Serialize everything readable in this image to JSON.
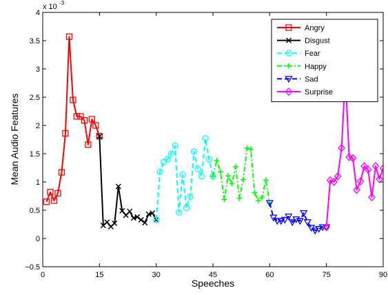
{
  "chart_data": {
    "type": "line",
    "title": "",
    "xlabel": "Speeches",
    "ylabel": "Mean Audio Features",
    "exponent_label": "x 10",
    "exponent_power": "-3",
    "xlim": [
      0,
      90
    ],
    "ylim": [
      -0.5,
      4
    ],
    "xticks": [
      0,
      15,
      30,
      45,
      60,
      75,
      90
    ],
    "yticks": [
      -0.5,
      0,
      0.5,
      1,
      1.5,
      2,
      2.5,
      3,
      3.5,
      4
    ],
    "ytick_labels": [
      "−0.5",
      "0",
      "0.5",
      "1",
      "1.5",
      "2",
      "2.5",
      "3",
      "3.5",
      "4"
    ],
    "grid": false,
    "legend_position": "top-right",
    "series": [
      {
        "name": "Angry",
        "color": "#ff0000",
        "dash": "solid",
        "marker": "square",
        "x": [
          1,
          2,
          3,
          4,
          5,
          6,
          7,
          8,
          9,
          10,
          11,
          12,
          13,
          14,
          15
        ],
        "y": [
          0.65,
          0.82,
          0.67,
          0.8,
          1.17,
          1.86,
          3.57,
          2.45,
          2.16,
          2.16,
          2.09,
          1.66,
          2.11,
          2.0,
          1.81
        ]
      },
      {
        "name": "Disgust",
        "color": "#000000",
        "dash": "solid",
        "marker": "x",
        "x": [
          15,
          16,
          17,
          18,
          19,
          20,
          21,
          22,
          23,
          24,
          25,
          26,
          27,
          28,
          29,
          30
        ],
        "y": [
          1.81,
          0.23,
          0.29,
          0.21,
          0.27,
          0.92,
          0.49,
          0.41,
          0.48,
          0.36,
          0.38,
          0.33,
          0.28,
          0.43,
          0.45,
          0.33
        ]
      },
      {
        "name": "Fear",
        "color": "#00ffff",
        "dash": "dashed",
        "marker": "circle",
        "x": [
          30,
          31,
          32,
          33,
          34,
          35,
          36,
          37,
          38,
          39,
          40,
          41,
          42,
          43,
          44,
          45
        ],
        "y": [
          0.33,
          1.18,
          1.35,
          1.4,
          1.5,
          1.64,
          0.46,
          1.13,
          0.54,
          0.74,
          1.54,
          1.23,
          1.1,
          1.77,
          1.4,
          1.1
        ]
      },
      {
        "name": "Happy",
        "color": "#00ff00",
        "dash": "dashdot",
        "marker": "plus",
        "x": [
          45,
          46,
          47,
          48,
          49,
          50,
          51,
          52,
          53,
          54,
          55,
          56,
          57,
          58,
          59,
          60
        ],
        "y": [
          1.1,
          1.38,
          1.18,
          0.69,
          1.11,
          0.97,
          1.27,
          0.71,
          1.04,
          1.6,
          1.58,
          0.81,
          0.67,
          0.73,
          1.03,
          0.63
        ]
      },
      {
        "name": "Sad",
        "color": "#0000ff",
        "dash": "dashed",
        "marker": "triangle-down",
        "x": [
          60,
          61,
          62,
          63,
          64,
          65,
          66,
          67,
          68,
          69,
          70,
          71,
          72,
          73,
          74,
          75
        ],
        "y": [
          0.63,
          0.37,
          0.31,
          0.31,
          0.33,
          0.39,
          0.29,
          0.34,
          0.31,
          0.45,
          0.29,
          0.19,
          0.14,
          0.17,
          0.2,
          0.2
        ]
      },
      {
        "name": "Surprise",
        "color": "#ff00ff",
        "dash": "solid",
        "marker": "diamond",
        "x": [
          75,
          76,
          77,
          78,
          79,
          80,
          81,
          82,
          83,
          84,
          85,
          86,
          87,
          88,
          89,
          90
        ],
        "y": [
          0.2,
          1.03,
          1.0,
          1.1,
          1.6,
          2.9,
          1.44,
          1.42,
          0.86,
          1.01,
          1.28,
          1.22,
          0.73,
          1.28,
          1.05,
          1.24
        ]
      }
    ]
  }
}
